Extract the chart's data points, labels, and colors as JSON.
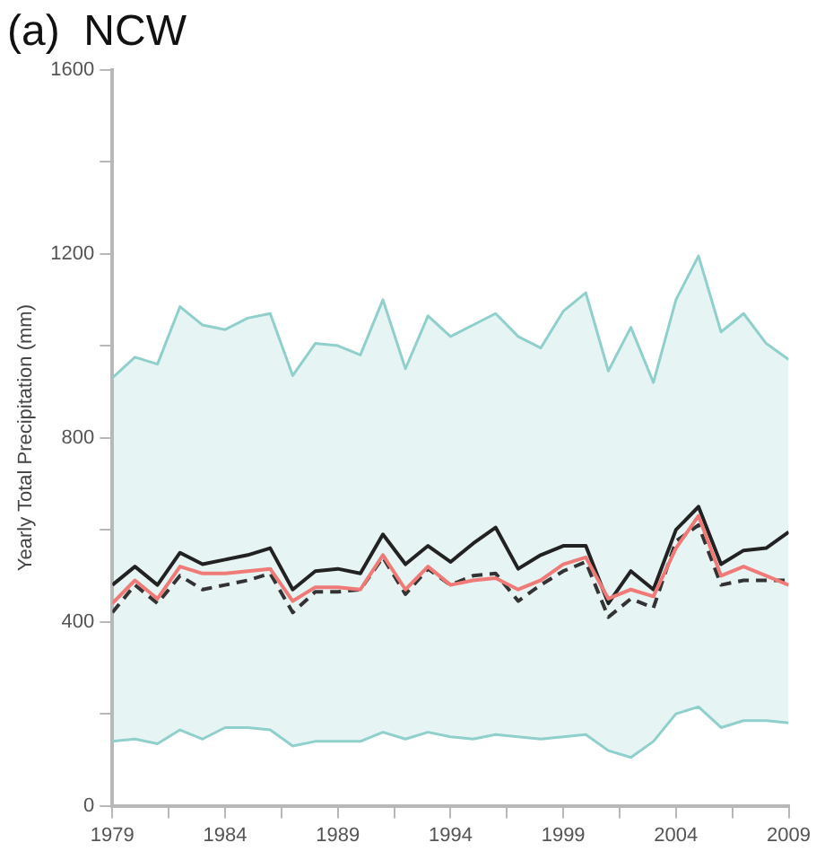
{
  "chart_data": {
    "type": "line",
    "title": "(a)  NCW",
    "ylabel": "Yearly Total Precipitation (mm)",
    "x": [
      1979,
      1980,
      1981,
      1982,
      1983,
      1984,
      1985,
      1986,
      1987,
      1988,
      1989,
      1990,
      1991,
      1992,
      1993,
      1994,
      1995,
      1996,
      1997,
      1998,
      1999,
      2000,
      2001,
      2002,
      2003,
      2004,
      2005,
      2006,
      2007,
      2008,
      2009
    ],
    "series": [
      {
        "color": "#8fcfcc",
        "line_style": "solid",
        "values": [
          930,
          975,
          960,
          1085,
          1045,
          1035,
          1060,
          1070,
          935,
          1005,
          1000,
          980,
          1100,
          950,
          1065,
          1020,
          1045,
          1070,
          1020,
          995,
          1075,
          1115,
          945,
          1040,
          920,
          1100,
          1195,
          1030,
          1070,
          1005,
          970
        ],
        "upper": [
          930,
          975,
          960,
          1085,
          1045,
          1035,
          1060,
          1070,
          935,
          1005,
          1000,
          980,
          1100,
          950,
          1065,
          1020,
          1045,
          1070,
          1020,
          995,
          1075,
          1115,
          945,
          1040,
          920,
          1100,
          1195,
          1030,
          1070,
          1005,
          970
        ],
        "lower": [
          140,
          145,
          135,
          165,
          145,
          170,
          170,
          165,
          130,
          140,
          140,
          140,
          160,
          145,
          160,
          150,
          145,
          155,
          150,
          145,
          150,
          155,
          120,
          105,
          140,
          200,
          215,
          170,
          185,
          185,
          180
        ]
      },
      {
        "color": "#8fcfcc",
        "line_style": "solid",
        "values": [
          140,
          145,
          135,
          165,
          145,
          170,
          170,
          165,
          130,
          140,
          140,
          140,
          160,
          145,
          160,
          150,
          145,
          155,
          150,
          145,
          150,
          155,
          120,
          105,
          140,
          200,
          215,
          170,
          185,
          185,
          180
        ]
      },
      {
        "color": "#f07a78",
        "line_style": "solid",
        "values": [
          440,
          490,
          450,
          520,
          505,
          505,
          510,
          515,
          445,
          475,
          475,
          470,
          545,
          470,
          520,
          480,
          490,
          495,
          470,
          490,
          525,
          540,
          450,
          470,
          455,
          560,
          630,
          500,
          520,
          500,
          480
        ]
      },
      {
        "color": "#333333",
        "line_style": "dashed",
        "values": [
          420,
          480,
          440,
          500,
          470,
          480,
          490,
          505,
          420,
          465,
          465,
          470,
          540,
          460,
          515,
          480,
          500,
          505,
          445,
          480,
          510,
          530,
          410,
          450,
          430,
          575,
          610,
          480,
          490,
          490,
          490
        ]
      },
      {
        "color": "#222222",
        "line_style": "solid",
        "values": [
          480,
          520,
          480,
          550,
          525,
          535,
          545,
          560,
          470,
          510,
          515,
          505,
          590,
          525,
          565,
          530,
          570,
          605,
          515,
          545,
          565,
          565,
          440,
          510,
          470,
          600,
          650,
          525,
          555,
          560,
          595
        ]
      }
    ],
    "xlim": [
      1979,
      2009
    ],
    "xticks": [
      1979,
      {
        "value": 1981.5,
        "label": null
      },
      1984,
      {
        "value": 1986.5,
        "label": null
      },
      1989,
      {
        "value": 1991.5,
        "label": null
      },
      1994,
      {
        "value": 1996.5,
        "label": null
      },
      1999,
      {
        "value": 2001.5,
        "label": null
      },
      2004,
      {
        "value": 2006.5,
        "label": null
      },
      2009
    ],
    "ylim": [
      0,
      1600
    ],
    "yticks": [
      0,
      {
        "value": 200,
        "label": null
      },
      400,
      {
        "value": 600,
        "label": null
      },
      800,
      {
        "value": 1000,
        "label": null
      },
      1200,
      {
        "value": 1400,
        "label": null
      },
      1600
    ],
    "grid": false,
    "legend": false,
    "marker": "none"
  }
}
